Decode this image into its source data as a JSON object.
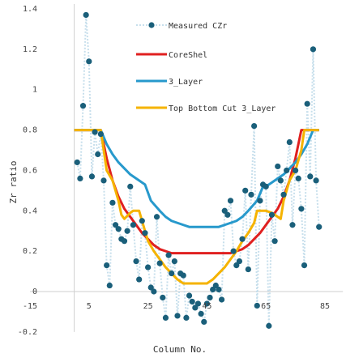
{
  "chart_data": {
    "type": "line",
    "xlabel": "Column No.",
    "ylabel": "Zr ratio",
    "xlim": [
      -15,
      90
    ],
    "ylim": [
      -0.2,
      1.4
    ],
    "xticks": [
      "-15",
      "5",
      "25",
      "45",
      "65",
      "85"
    ],
    "xtick_values": [
      -15,
      5,
      25,
      45,
      65,
      85
    ],
    "yticks": [
      "-0.2",
      "0",
      "0.2",
      "0.4",
      "0.6",
      "0.8",
      "1",
      "1.2",
      "1.4"
    ],
    "ytick_values": [
      -0.2,
      0,
      0.2,
      0.4,
      0.6,
      0.8,
      1,
      1.2,
      1.4
    ],
    "grid": false,
    "legend_position": "top-center",
    "colors": {
      "measured": "#1a5f7a",
      "measured_link": "#c7dfec",
      "coreshel": "#e02020",
      "three_layer": "#2799cc",
      "top_bottom": "#f5b300"
    },
    "series": [
      {
        "name": "Measured CZr",
        "kind": "scatter",
        "x": [
          1,
          2,
          3,
          4,
          5,
          6,
          7,
          8,
          9,
          10,
          11,
          12,
          13,
          14,
          15,
          16,
          17,
          18,
          19,
          20,
          21,
          22,
          23,
          24,
          25,
          26,
          27,
          28,
          29,
          30,
          31,
          32,
          33,
          34,
          35,
          36,
          37,
          38,
          39,
          40,
          41,
          42,
          43,
          44,
          45,
          46,
          47,
          48,
          49,
          50,
          51,
          52,
          53,
          54,
          55,
          56,
          57,
          58,
          59,
          60,
          61,
          62,
          63,
          64,
          65,
          66,
          67,
          68,
          69,
          70,
          71,
          72,
          73,
          74,
          75,
          76,
          77,
          78,
          79,
          80,
          81,
          82,
          83
        ],
        "y": [
          0.64,
          0.56,
          0.92,
          1.37,
          1.14,
          0.57,
          0.79,
          0.68,
          0.78,
          0.55,
          0.13,
          0.03,
          0.44,
          0.33,
          0.31,
          0.26,
          0.25,
          0.3,
          0.52,
          0.33,
          0.15,
          0.06,
          0.35,
          0.29,
          0.12,
          0.02,
          0.0,
          0.37,
          0.14,
          -0.03,
          -0.13,
          0.18,
          0.09,
          0.15,
          -0.12,
          0.09,
          0.08,
          -0.13,
          -0.02,
          -0.05,
          -0.08,
          -0.06,
          -0.11,
          -0.15,
          -0.06,
          -0.03,
          0.01,
          0.03,
          0.01,
          -0.04,
          0.4,
          0.38,
          0.45,
          0.2,
          0.13,
          0.15,
          0.26,
          0.5,
          0.11,
          0.48,
          0.82,
          -0.07,
          0.45,
          0.53,
          0.52,
          -0.17,
          0.38,
          0.25,
          0.62,
          0.55,
          0.48,
          0.6,
          0.74,
          0.33,
          0.6,
          0.56,
          0.41,
          0.13,
          0.93,
          0.57,
          1.2,
          0.55,
          0.32
        ]
      },
      {
        "name": "CoreShel",
        "kind": "line",
        "x": [
          0,
          9,
          11,
          13,
          15,
          17,
          19,
          21,
          23,
          25,
          27,
          29,
          31,
          33,
          35,
          37,
          39,
          41,
          43,
          45,
          47,
          49,
          51,
          53,
          55,
          57,
          59,
          61,
          63,
          65,
          67,
          69,
          71,
          73,
          75,
          77,
          79,
          81,
          83
        ],
        "y": [
          0.8,
          0.8,
          0.66,
          0.55,
          0.47,
          0.41,
          0.37,
          0.33,
          0.29,
          0.26,
          0.23,
          0.21,
          0.2,
          0.19,
          0.19,
          0.19,
          0.19,
          0.19,
          0.19,
          0.19,
          0.19,
          0.19,
          0.19,
          0.19,
          0.2,
          0.21,
          0.23,
          0.26,
          0.29,
          0.33,
          0.37,
          0.41,
          0.47,
          0.55,
          0.66,
          0.8,
          0.8,
          0.8,
          0.8
        ]
      },
      {
        "name": "3_Layer",
        "kind": "line",
        "x": [
          0,
          9,
          11,
          13,
          15,
          17,
          19,
          21,
          23,
          24,
          26,
          29,
          31,
          33,
          35,
          37,
          39,
          41,
          43,
          45,
          47,
          49,
          51,
          53,
          55,
          57,
          59,
          62,
          64,
          65,
          67,
          69,
          71,
          73,
          75,
          77,
          79,
          81,
          83
        ],
        "y": [
          0.8,
          0.8,
          0.73,
          0.68,
          0.64,
          0.61,
          0.58,
          0.56,
          0.54,
          0.53,
          0.45,
          0.4,
          0.37,
          0.35,
          0.34,
          0.33,
          0.32,
          0.32,
          0.32,
          0.32,
          0.32,
          0.32,
          0.33,
          0.34,
          0.35,
          0.37,
          0.4,
          0.45,
          0.52,
          0.52,
          0.54,
          0.56,
          0.58,
          0.61,
          0.64,
          0.68,
          0.73,
          0.8,
          0.8
        ]
      },
      {
        "name": "Top Bottom Cut 3_Layer",
        "kind": "line",
        "x": [
          0,
          9,
          10,
          11,
          13,
          15,
          16,
          17,
          19,
          20,
          22,
          25,
          27,
          29,
          31,
          33,
          35,
          37,
          39,
          41,
          43,
          45,
          47,
          49,
          51,
          53,
          55,
          57,
          59,
          61,
          62,
          64,
          65,
          67,
          68,
          70,
          71,
          73,
          75,
          77,
          78,
          80,
          83
        ],
        "y": [
          0.8,
          0.8,
          0.7,
          0.6,
          0.55,
          0.45,
          0.38,
          0.36,
          0.39,
          0.4,
          0.4,
          0.25,
          0.2,
          0.16,
          0.12,
          0.09,
          0.06,
          0.04,
          0.04,
          0.04,
          0.04,
          0.04,
          0.06,
          0.09,
          0.12,
          0.16,
          0.2,
          0.25,
          0.29,
          0.34,
          0.4,
          0.4,
          0.4,
          0.39,
          0.38,
          0.36,
          0.45,
          0.55,
          0.6,
          0.7,
          0.8,
          0.8,
          0.8
        ]
      }
    ]
  }
}
